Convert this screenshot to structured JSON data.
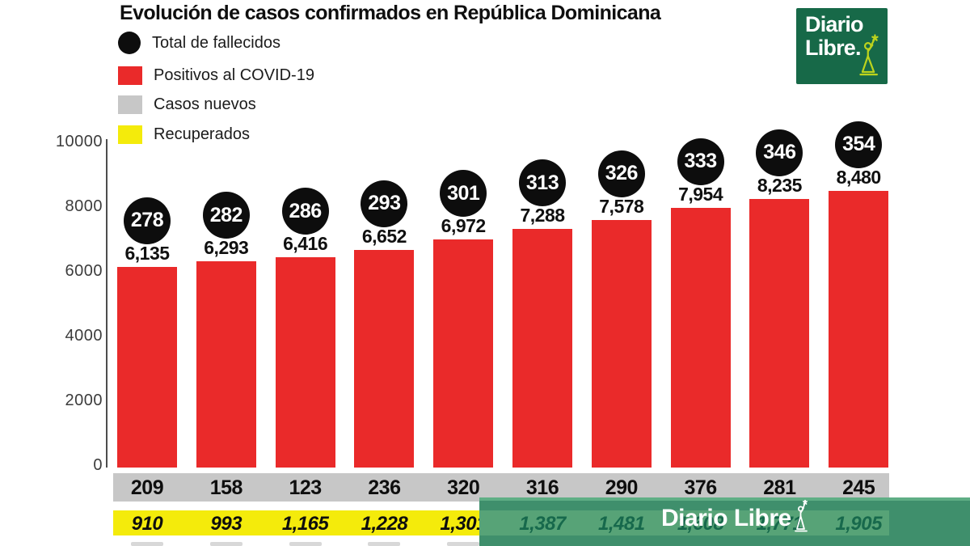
{
  "title": "Evolución de casos confirmados en República Dominicana",
  "legend": [
    {
      "label": "Total de fallecidos",
      "swatch": "circle",
      "color": "#0d0d0d"
    },
    {
      "label": "Positivos al COVID-19",
      "swatch": "square",
      "color": "#ea2a2a"
    },
    {
      "label": "Casos nuevos",
      "swatch": "square",
      "color": "#c7c7c7"
    },
    {
      "label": "Recuperados",
      "swatch": "square",
      "color": "#f4eb0b"
    }
  ],
  "colors": {
    "deaths_badge": "#0d0d0d",
    "positives_bar": "#ea2a2a",
    "new_cases_row": "#c7c7c7",
    "recovered_row": "#f4eb0b",
    "watermark_band": "#3f8f6c",
    "watermark_band_highlight": "#5fae85",
    "watermark_strip": "#57a377",
    "watermark_value_text": "#17694c",
    "logo_background": "#176948",
    "logo_statue": "#bcd31d"
  },
  "logo": {
    "line1": "Diario",
    "line2": "Libre."
  },
  "watermark": {
    "text": "Diario Libre"
  },
  "chart_data": {
    "type": "bar",
    "title": "Evolución de casos confirmados en República Dominicana",
    "xlabel": "",
    "ylabel": "",
    "ylim": [
      0,
      10000
    ],
    "yticks": [
      0,
      2000,
      4000,
      6000,
      8000,
      10000
    ],
    "ytick_labels": [
      "0",
      "2000",
      "4000",
      "6000",
      "8000",
      "10000"
    ],
    "grid": false,
    "legend_position": "top-left",
    "series": [
      {
        "name": "Total de fallecidos",
        "style": "black-circle-badge",
        "values": [
          278,
          282,
          286,
          293,
          301,
          313,
          326,
          333,
          346,
          354
        ],
        "labels": [
          "278",
          "282",
          "286",
          "293",
          "301",
          "313",
          "326",
          "333",
          "346",
          "354"
        ]
      },
      {
        "name": "Positivos al COVID-19",
        "style": "red-bar",
        "values": [
          6135,
          6293,
          6416,
          6652,
          6972,
          7288,
          7578,
          7954,
          8235,
          8480
        ],
        "labels": [
          "6,135",
          "6,293",
          "6,416",
          "6,652",
          "6,972",
          "7,288",
          "7,578",
          "7,954",
          "8,235",
          "8,480"
        ]
      },
      {
        "name": "Casos nuevos",
        "style": "gray-row",
        "values": [
          209,
          158,
          123,
          236,
          320,
          316,
          290,
          376,
          281,
          245
        ],
        "labels": [
          "209",
          "158",
          "123",
          "236",
          "320",
          "316",
          "290",
          "376",
          "281",
          "245"
        ]
      },
      {
        "name": "Recuperados",
        "style": "yellow-row",
        "values": [
          910,
          993,
          1165,
          1228,
          1301,
          1387,
          1481,
          1608,
          1771,
          1905
        ],
        "labels": [
          "910",
          "993",
          "1,165",
          "1,228",
          "1,301",
          "1,387",
          "1,481",
          "1,608",
          "1,771",
          "1,905"
        ]
      }
    ]
  }
}
